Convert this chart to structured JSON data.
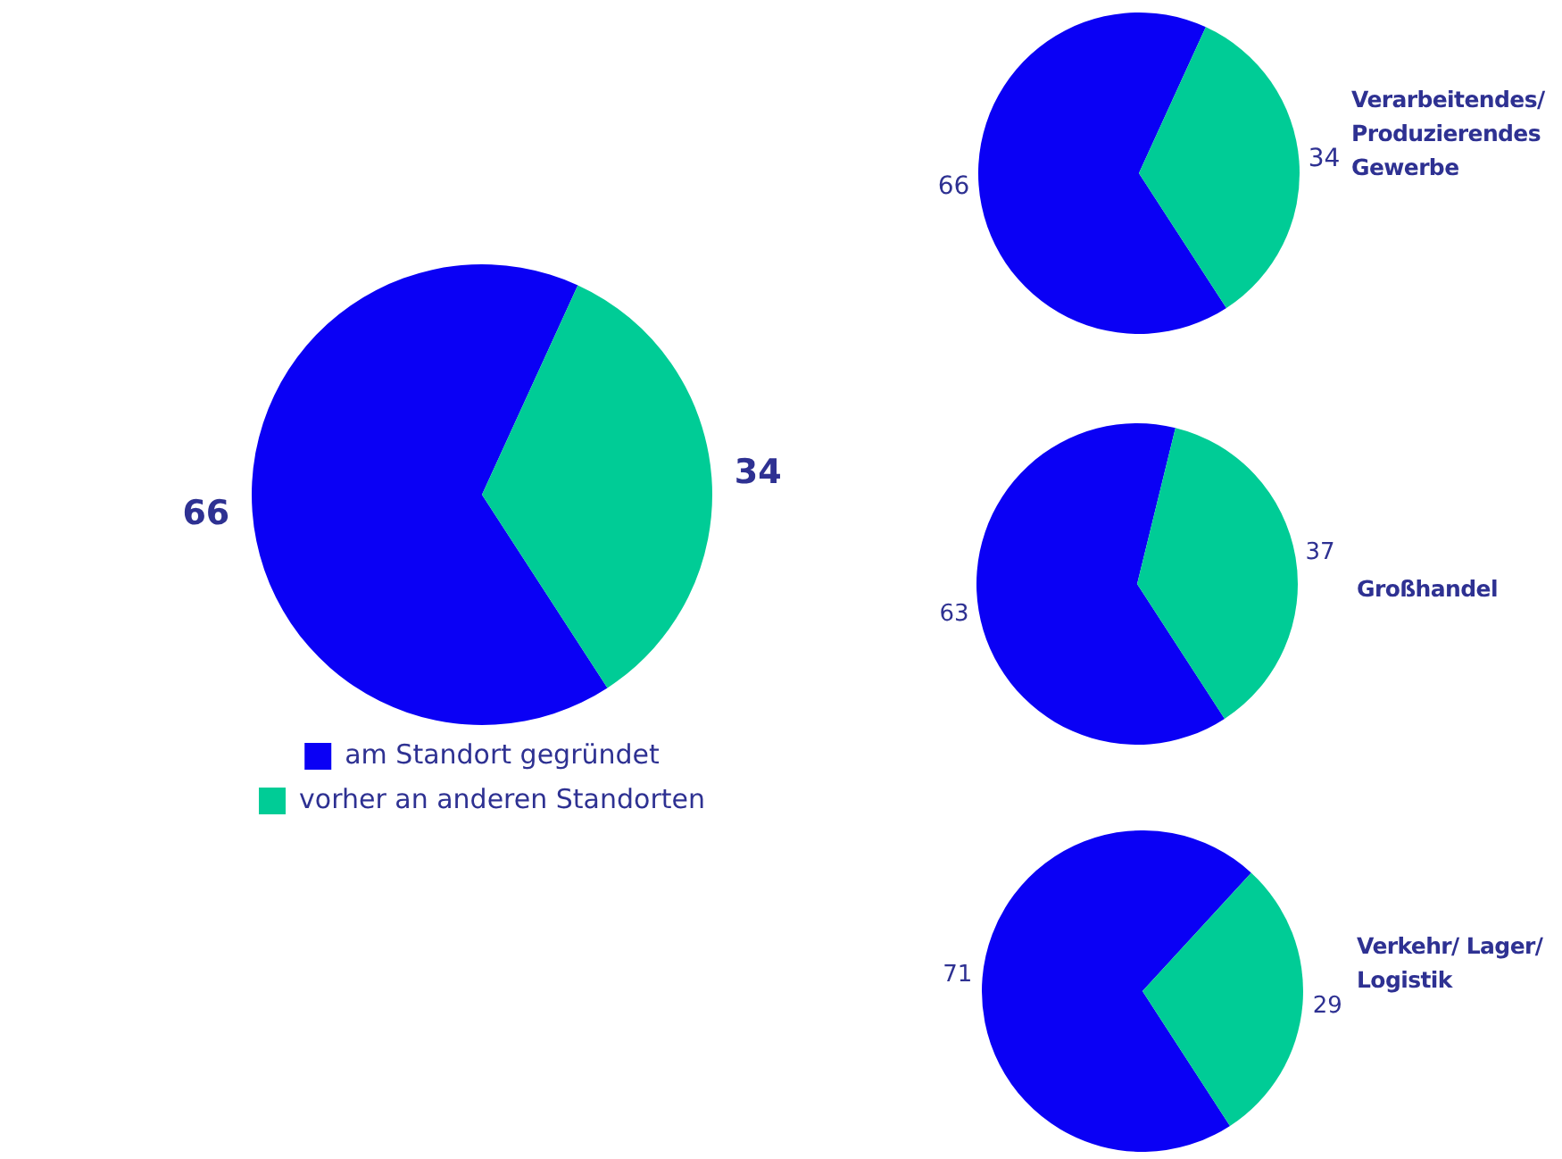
{
  "chart_data": [
    {
      "type": "pie",
      "categories": [
        "am Standort gegründet",
        "vorher an anderen Standorten"
      ],
      "values": [
        66,
        34
      ],
      "colors": [
        "#0a00f5",
        "#00cc96"
      ],
      "data_labels": true,
      "legend": "bottom"
    },
    {
      "type": "pie",
      "title": "Verarbeitendes/ Produzierendes Gewerbe",
      "categories": [
        null,
        null
      ],
      "values": [
        66,
        34
      ],
      "colors": [
        "#0a00f5",
        "#00cc96"
      ],
      "data_labels": true
    },
    {
      "type": "pie",
      "title": "Großhandel",
      "categories": [
        null,
        null
      ],
      "values": [
        63,
        37
      ],
      "colors": [
        "#0a00f5",
        "#00cc96"
      ],
      "data_labels": true
    },
    {
      "type": "pie",
      "title": "Verkehr/ Lager/ Logistik",
      "categories": [
        null,
        null
      ],
      "values": [
        71,
        29
      ],
      "colors": [
        "#0a00f5",
        "#00cc96"
      ],
      "data_labels": true
    }
  ]
}
